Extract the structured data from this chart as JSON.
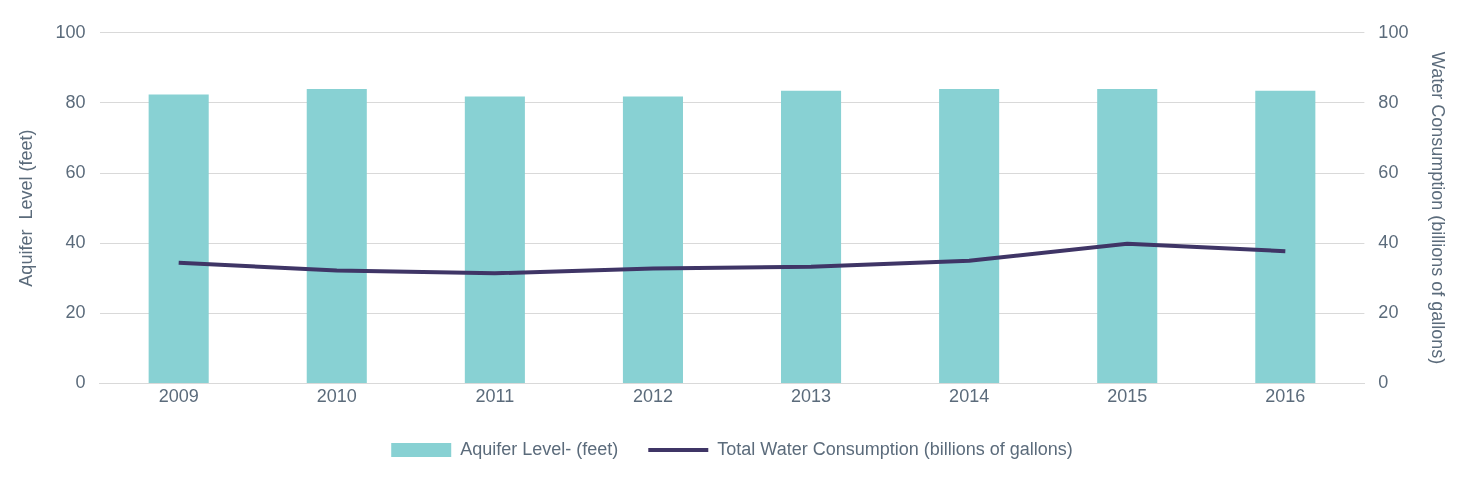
{
  "chart_data": {
    "type": "bar",
    "categories": [
      "2009",
      "2010",
      "2011",
      "2012",
      "2013",
      "2014",
      "2015",
      "2016"
    ],
    "series": [
      {
        "name": "Aquifer Level- (feet)",
        "color": "#88d1d3",
        "values": [
          82.4,
          84.0,
          81.8,
          81.8,
          83.5,
          84.0,
          84.0,
          83.5
        ]
      },
      {
        "name": "Total Water Consumption (billions of gallons)",
        "type": "line",
        "axis": "y2",
        "color": "#3f3566",
        "values": [
          34.4,
          32.2,
          31.4,
          32.8,
          33.3,
          35.0,
          39.8,
          37.7
        ]
      }
    ],
    "ylabel": "Aquifer  Level (feet)",
    "y2label": "Water Consumption (billions of gallons)",
    "ylim": [
      0,
      100
    ],
    "yticks": [
      0,
      20,
      40,
      60,
      80,
      100
    ],
    "y2lim": [
      0,
      100
    ],
    "y2ticks": [
      0,
      20,
      40,
      60,
      80,
      100
    ],
    "grid": "y",
    "legend": "bottom"
  }
}
